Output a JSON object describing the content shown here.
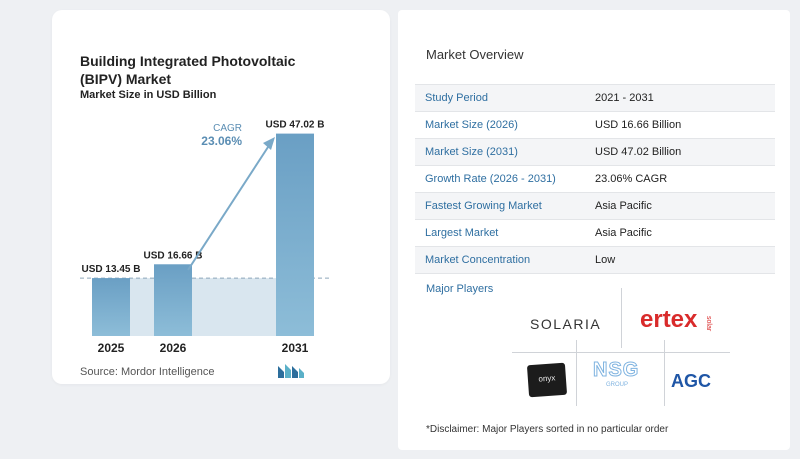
{
  "chart_data": {
    "type": "bar",
    "title": "Building Integrated Photovoltaic (BIPV) Market",
    "subtitle": "Market Size in USD Billion",
    "categories": [
      "2025",
      "2026",
      "2031"
    ],
    "values": [
      13.45,
      16.66,
      47.02
    ],
    "data_labels": [
      "USD 13.45 B",
      "USD 16.66 B",
      "USD 47.02 B"
    ],
    "cagr_label": "CAGR",
    "cagr_value": "23.06%",
    "ylim": [
      0,
      50
    ],
    "grid": false,
    "colors": {
      "bar": "#6a9fc4",
      "bar_light": "#8dbdd8",
      "band": "#d9e6ef",
      "arrow": "#7aa9c8",
      "cagr_text": "#5a8db3"
    }
  },
  "source": "Source:  Mordor Intelligence",
  "overview": {
    "title": "Market Overview",
    "rows": [
      {
        "label": "Study Period",
        "value": "2021 - 2031"
      },
      {
        "label": "Market Size (2026)",
        "value": "USD 16.66 Billion"
      },
      {
        "label": "Market Size (2031)",
        "value": "USD 47.02 Billion"
      },
      {
        "label": "Growth Rate (2026 - 2031)",
        "value": "23.06% CAGR"
      },
      {
        "label": "Fastest Growing Market",
        "value": "Asia Pacific"
      },
      {
        "label": "Largest Market",
        "value": "Asia Pacific"
      },
      {
        "label": "Market Concentration",
        "value": "Low"
      }
    ]
  },
  "players": {
    "title": "Major Players",
    "logos": {
      "solaria": "SOLARIA",
      "ertex": "ertex",
      "ertex_small": "solar",
      "onyx": "onyx",
      "nsg": "NSG",
      "nsg_small": "GROUP",
      "agc": "AGC"
    }
  },
  "disclaimer": "*Disclaimer: Major Players sorted in no particular order"
}
